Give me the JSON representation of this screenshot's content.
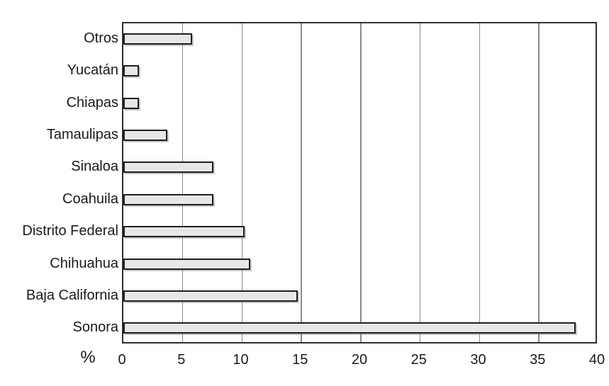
{
  "chart_data": {
    "type": "bar",
    "orientation": "horizontal",
    "title": "",
    "xlabel": "%",
    "ylabel": "",
    "categories": [
      "Otros",
      "Yucatán",
      "Chiapas",
      "Tamaulipas",
      "Sinaloa",
      "Coahuila",
      "Distrito Federal",
      "Chihuahua",
      "Baja California",
      "Sonora"
    ],
    "values": [
      5.8,
      1.3,
      1.3,
      3.7,
      7.6,
      7.6,
      10.2,
      10.7,
      14.7,
      38.1
    ],
    "xlim": [
      0,
      40
    ],
    "xticks": [
      0,
      5,
      10,
      15,
      20,
      25,
      30,
      35,
      40
    ],
    "grid": "vertical",
    "legend": "none",
    "colors": {
      "bar_fill": "#e7e7e7",
      "bar_border": "#1f1f1f",
      "gridline": "#8a8a8a",
      "frame": "#2f2f2f",
      "text": "#1a1a1a"
    }
  }
}
